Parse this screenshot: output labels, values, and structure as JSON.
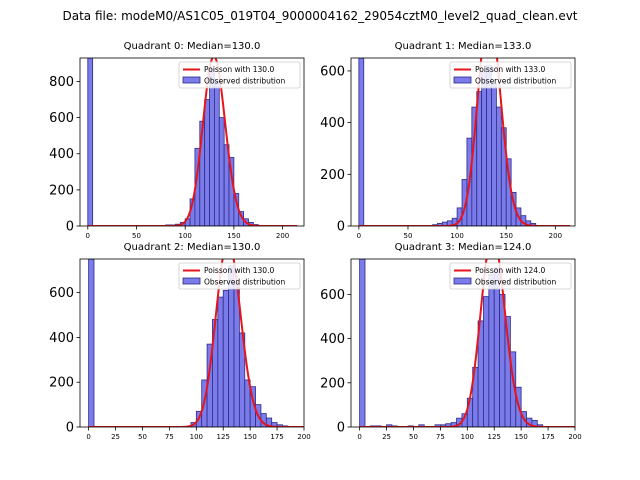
{
  "figure": {
    "suptitle": "Data file: modeM0/AS1C05_019T04_9000004162_29054cztM0_level2_quad_clean.evt"
  },
  "colors": {
    "bar_fill": "#7b7bea",
    "bar_edge": "#2c2c8a",
    "poisson_line": "#e8141b"
  },
  "chart_data": [
    {
      "type": "bar",
      "title": "Quadrant 0: Median=130.0",
      "xlabel": "",
      "ylabel": "",
      "xlim": [
        -8,
        222
      ],
      "ylim": [
        0,
        930
      ],
      "xticks": [
        0,
        50,
        100,
        150,
        200
      ],
      "yticks": [
        0,
        200,
        400,
        600,
        800
      ],
      "bin_width": 5,
      "zero_bin": 930,
      "bins": [
        [
          80,
          6
        ],
        [
          85,
          6
        ],
        [
          90,
          10
        ],
        [
          95,
          20
        ],
        [
          100,
          40
        ],
        [
          105,
          150
        ],
        [
          110,
          430
        ],
        [
          115,
          580
        ],
        [
          120,
          700
        ],
        [
          125,
          870
        ],
        [
          130,
          800
        ],
        [
          135,
          600
        ],
        [
          140,
          450
        ],
        [
          145,
          380
        ],
        [
          150,
          180
        ],
        [
          155,
          80
        ],
        [
          160,
          40
        ],
        [
          165,
          20
        ],
        [
          170,
          8
        ]
      ],
      "poisson_mean": 130.0,
      "legend": {
        "line": "Poisson with 130.0",
        "bars": "Observed distribution",
        "loc": "upper right"
      }
    },
    {
      "type": "bar",
      "title": "Quadrant 1: Median=133.0",
      "xlabel": "",
      "ylabel": "",
      "xlim": [
        -8,
        220
      ],
      "ylim": [
        0,
        650
      ],
      "xticks": [
        0,
        50,
        100,
        150,
        200
      ],
      "yticks": [
        0,
        200,
        400,
        600
      ],
      "bin_width": 5,
      "zero_bin": 650,
      "bins": [
        [
          75,
          5
        ],
        [
          80,
          10
        ],
        [
          85,
          15
        ],
        [
          90,
          20
        ],
        [
          95,
          30
        ],
        [
          100,
          70
        ],
        [
          105,
          180
        ],
        [
          110,
          340
        ],
        [
          115,
          460
        ],
        [
          120,
          520
        ],
        [
          125,
          600
        ],
        [
          130,
          620
        ],
        [
          135,
          550
        ],
        [
          140,
          460
        ],
        [
          145,
          380
        ],
        [
          150,
          260
        ],
        [
          155,
          130
        ],
        [
          160,
          70
        ],
        [
          165,
          40
        ],
        [
          170,
          20
        ],
        [
          175,
          10
        ]
      ],
      "poisson_mean": 133.0,
      "legend": {
        "line": "Poisson with 133.0",
        "bars": "Observed distribution",
        "loc": "upper right"
      }
    },
    {
      "type": "bar",
      "title": "Quadrant 2: Median=130.0",
      "xlabel": "",
      "ylabel": "",
      "xlim": [
        -8,
        200
      ],
      "ylim": [
        0,
        750
      ],
      "xticks": [
        0,
        25,
        50,
        75,
        100,
        125,
        150,
        175,
        200
      ],
      "yticks": [
        0,
        200,
        400,
        600
      ],
      "bin_width": 5,
      "zero_bin": 750,
      "bins": [
        [
          95,
          20
        ],
        [
          100,
          70
        ],
        [
          105,
          210
        ],
        [
          110,
          370
        ],
        [
          115,
          480
        ],
        [
          120,
          580
        ],
        [
          125,
          610
        ],
        [
          130,
          720
        ],
        [
          135,
          640
        ],
        [
          140,
          420
        ],
        [
          145,
          210
        ],
        [
          150,
          180
        ],
        [
          155,
          100
        ],
        [
          160,
          60
        ],
        [
          165,
          40
        ],
        [
          170,
          20
        ],
        [
          175,
          10
        ],
        [
          180,
          5
        ]
      ],
      "poisson_mean": 130.0,
      "legend": {
        "line": "Poisson with 130.0",
        "bars": "Observed distribution",
        "loc": "upper right"
      }
    },
    {
      "type": "bar",
      "title": "Quadrant 3: Median=124.0",
      "xlabel": "",
      "ylabel": "",
      "xlim": [
        -8,
        200
      ],
      "ylim": [
        0,
        760
      ],
      "xticks": [
        0,
        25,
        50,
        75,
        100,
        125,
        150,
        175,
        200
      ],
      "yticks": [
        0,
        200,
        400,
        600
      ],
      "bin_width": 5,
      "zero_bin": 760,
      "bins": [
        [
          10,
          5
        ],
        [
          15,
          5
        ],
        [
          25,
          10
        ],
        [
          30,
          5
        ],
        [
          45,
          5
        ],
        [
          55,
          10
        ],
        [
          70,
          10
        ],
        [
          75,
          10
        ],
        [
          80,
          15
        ],
        [
          85,
          20
        ],
        [
          90,
          40
        ],
        [
          95,
          60
        ],
        [
          100,
          130
        ],
        [
          105,
          270
        ],
        [
          110,
          480
        ],
        [
          115,
          590
        ],
        [
          120,
          690
        ],
        [
          125,
          720
        ],
        [
          130,
          600
        ],
        [
          135,
          500
        ],
        [
          140,
          340
        ],
        [
          145,
          180
        ],
        [
          150,
          70
        ],
        [
          155,
          40
        ],
        [
          160,
          30
        ],
        [
          165,
          10
        ]
      ],
      "poisson_mean": 124.0,
      "legend": {
        "line": "Poisson with 124.0",
        "bars": "Observed distribution",
        "loc": "upper right"
      }
    }
  ]
}
